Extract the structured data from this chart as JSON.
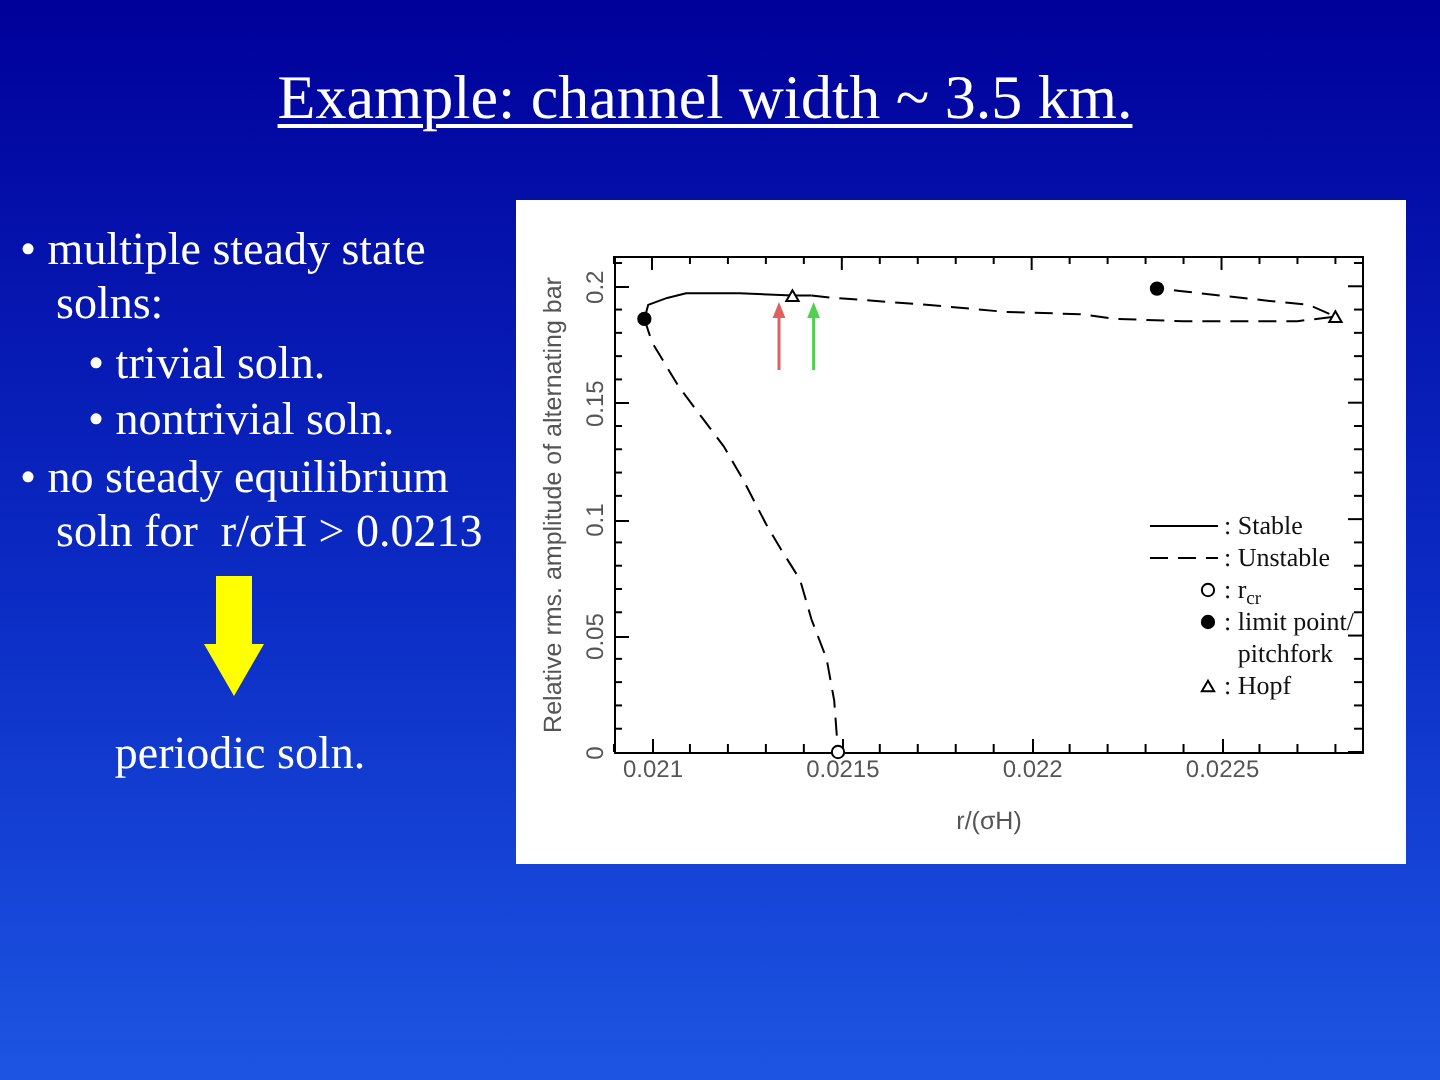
{
  "chart_data": {
    "type": "line",
    "title": "Example: channel width ~ 3.5 km.",
    "xlabel": "r/(σH)",
    "ylabel": "Relative rms. amplitude of alternating bar",
    "xlim": [
      0.0209,
      0.02287
    ],
    "ylim": [
      0,
      0.213
    ],
    "xticks": [
      {
        "value": 0.0209,
        "label": null
      },
      0.021,
      {
        "value": 0.0211,
        "label": null
      },
      {
        "value": 0.0212,
        "label": null
      },
      {
        "value": 0.0213,
        "label": null
      },
      {
        "value": 0.0214,
        "label": null
      },
      0.0215,
      {
        "value": 0.0216,
        "label": null
      },
      {
        "value": 0.0217,
        "label": null
      },
      {
        "value": 0.0218,
        "label": null
      },
      {
        "value": 0.0219,
        "label": null
      },
      0.022,
      {
        "value": 0.0221,
        "label": null
      },
      {
        "value": 0.0222,
        "label": null
      },
      {
        "value": 0.0223,
        "label": null
      },
      {
        "value": 0.0224,
        "label": null
      },
      0.0225,
      {
        "value": 0.0226,
        "label": null
      },
      {
        "value": 0.0227,
        "label": null
      },
      {
        "value": 0.0228,
        "label": null
      }
    ],
    "yticks": [
      0,
      {
        "value": 0.01,
        "label": null
      },
      {
        "value": 0.02,
        "label": null
      },
      {
        "value": 0.03,
        "label": null
      },
      {
        "value": 0.04,
        "label": null
      },
      0.05,
      {
        "value": 0.06,
        "label": null
      },
      {
        "value": 0.07,
        "label": null
      },
      {
        "value": 0.08,
        "label": null
      },
      {
        "value": 0.09,
        "label": null
      },
      0.1,
      {
        "value": 0.11,
        "label": null
      },
      {
        "value": 0.12,
        "label": null
      },
      {
        "value": 0.13,
        "label": null
      },
      {
        "value": 0.14,
        "label": null
      },
      0.15,
      {
        "value": 0.16,
        "label": null
      },
      {
        "value": 0.17,
        "label": null
      },
      {
        "value": 0.18,
        "label": null
      },
      {
        "value": 0.19,
        "label": null
      },
      0.2,
      {
        "value": 0.21,
        "label": null
      }
    ],
    "series": [
      {
        "name": ": Stable",
        "line_style": "solid",
        "color": "#000000",
        "x": [
          0.02098,
          0.02099,
          0.02104,
          0.02109,
          0.02123,
          0.02137,
          0.02142
        ],
        "values": [
          0.186,
          0.192,
          0.195,
          0.197,
          0.197,
          0.196,
          0.196
        ]
      },
      {
        "name": ": Unstable",
        "line_style": "dashed",
        "color": "#000000",
        "x": [
          0.02142,
          0.02148,
          0.02173,
          0.02193,
          0.02213,
          0.02222,
          0.0224,
          0.0227,
          0.0228,
          0.02273,
          0.02261,
          0.0225,
          0.02239,
          0.02233
        ],
        "values": [
          0.196,
          0.195,
          0.192,
          0.189,
          0.188,
          0.186,
          0.185,
          0.185,
          0.187,
          0.192,
          0.194,
          0.196,
          0.198,
          0.199
        ]
      },
      {
        "line_style": "dashed",
        "color": "#000000",
        "x": [
          0.02098,
          0.021,
          0.02107,
          0.02113,
          0.02119,
          0.02124,
          0.0213,
          0.02134,
          0.02139,
          0.02142,
          0.02146,
          0.02148,
          0.02149
        ],
        "values": [
          0.186,
          0.176,
          0.157,
          0.144,
          0.131,
          0.117,
          0.098,
          0.087,
          0.074,
          0.057,
          0.04,
          0.022,
          0
        ]
      },
      {
        "name": ": r$_{cr}$",
        "type": "scatter",
        "marker": "circle",
        "color": "#ffffff",
        "x": [
          0.02149
        ],
        "values": [
          0
        ]
      },
      {
        "name": ": limit point/ pitchfork",
        "type": "scatter",
        "marker": "circle",
        "color": "#000000",
        "x": [
          0.02098,
          0.02233
        ],
        "values": [
          0.186,
          0.199
        ]
      },
      {
        "name": ": Hopf",
        "type": "scatter",
        "marker": "triangle",
        "color": "#ffffff",
        "x": [
          0.02137,
          0.0228
        ],
        "values": [
          0.196,
          0.187
        ]
      }
    ],
    "legend": "bottom right",
    "annotations": [
      "• multiple steady state solns:",
      "• trivial soln.",
      "• nontrivial soln.",
      "• no steady equilibrium soln for  r/σH > 0.0213",
      "periodic soln."
    ]
  }
}
